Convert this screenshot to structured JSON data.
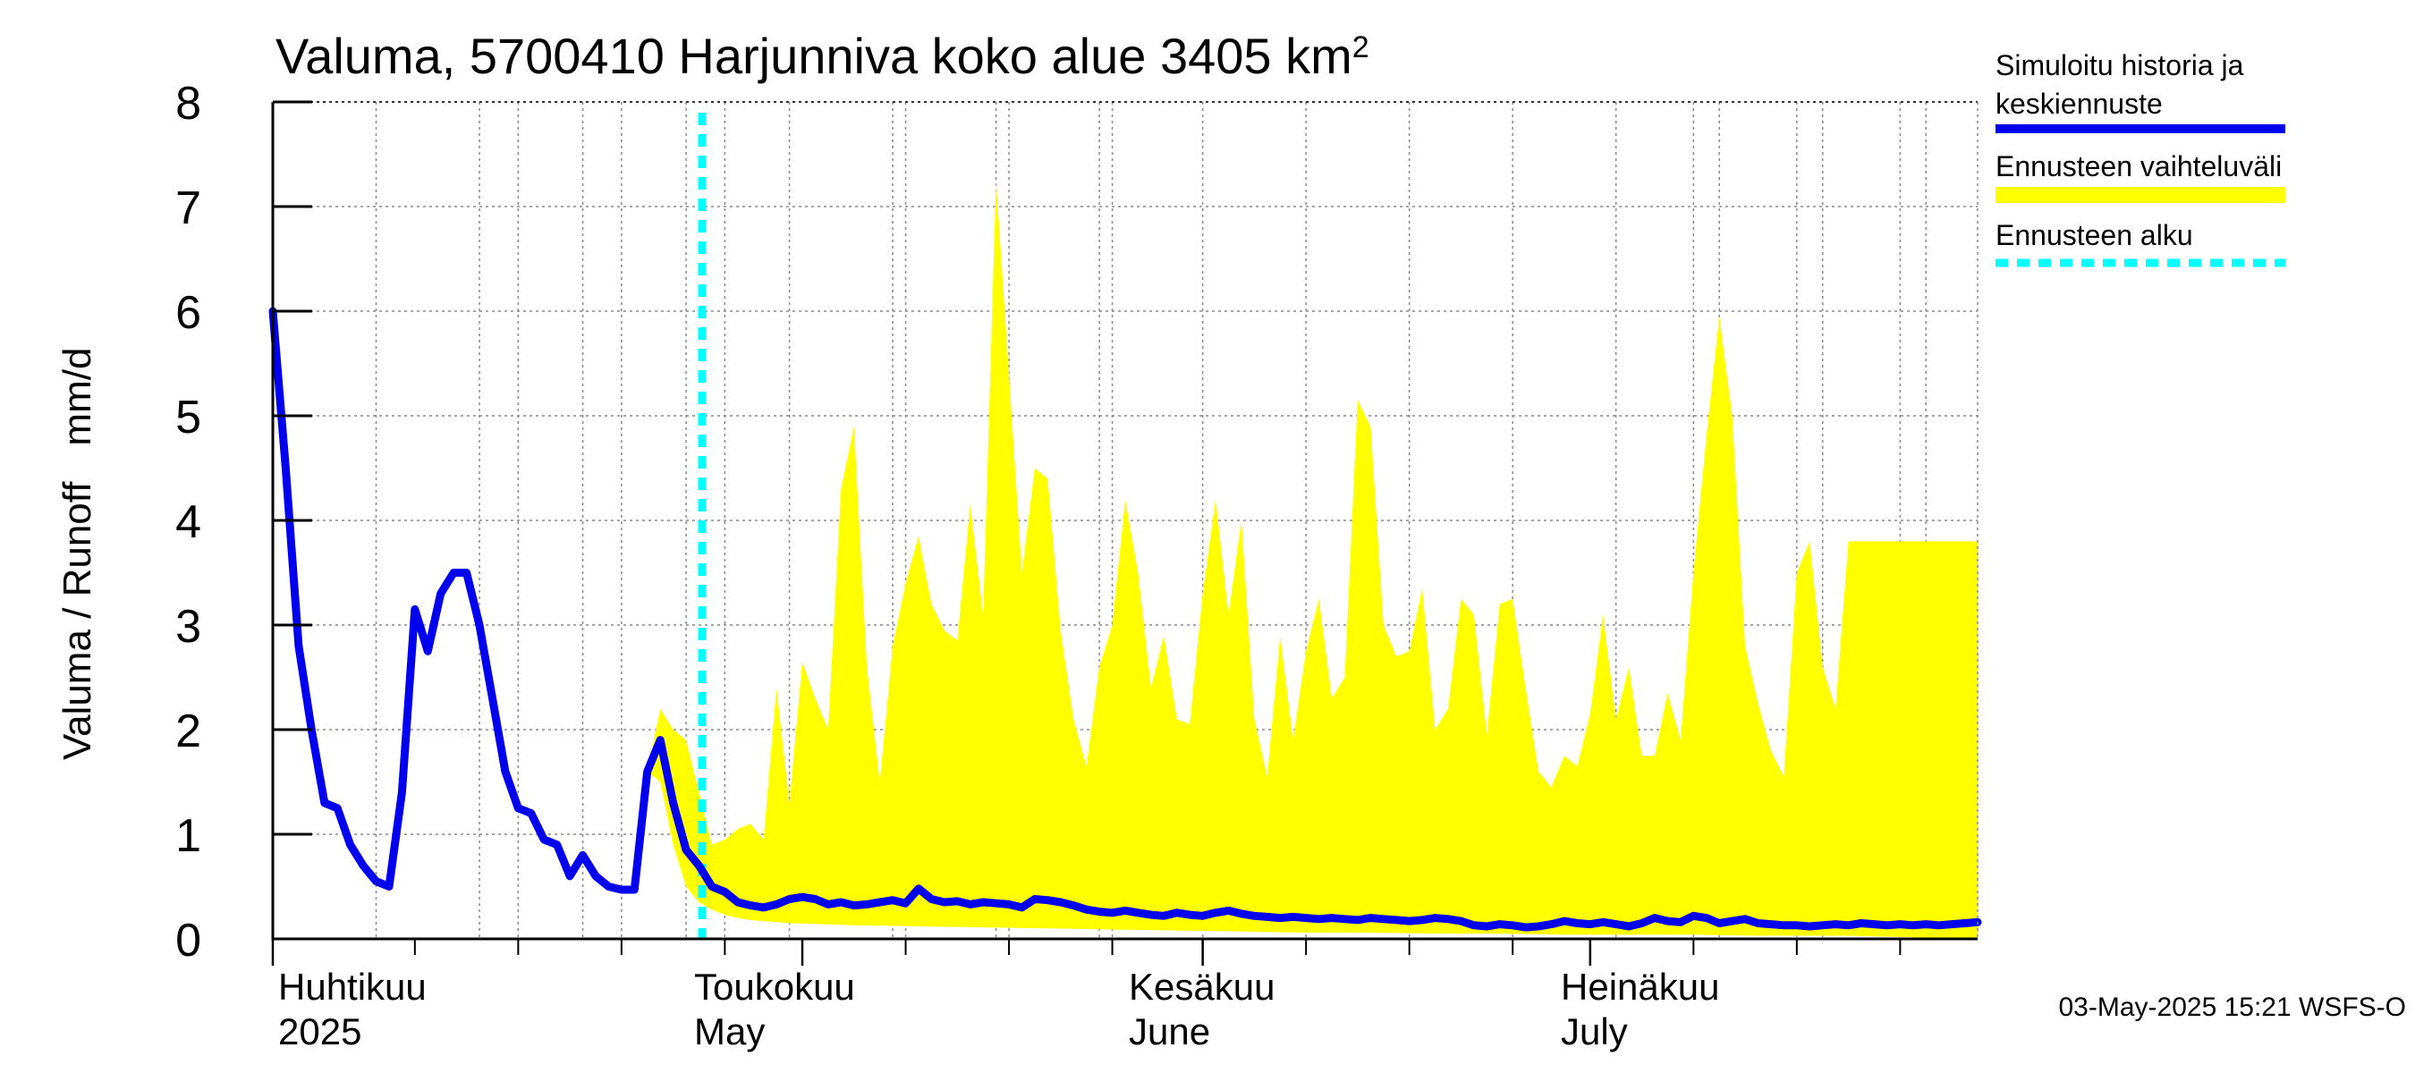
{
  "chart_data": {
    "type": "area",
    "title": "Valuma, 5700410 Harjunniva koko alue 3405 km",
    "title_superscript": "2",
    "ylabel_fi": "Valuma / Runoff",
    "ylabel_unit": "mm/d",
    "ylim": [
      0,
      8
    ],
    "y_ticks": [
      "0",
      "1",
      "2",
      "3",
      "4",
      "5",
      "6",
      "7",
      "8"
    ],
    "x_start": "2025-03-21",
    "x_end": "2025-07-31",
    "forecast_start_day": 40,
    "x_labels": [
      {
        "day": 0,
        "fi": "Huhtikuu",
        "en": "2025"
      },
      {
        "day": 1,
        "fi": "",
        "en": ""
      },
      {
        "day": 41,
        "fi": "Toukokuu",
        "en": "May"
      },
      {
        "day": 72,
        "fi": "Kesäkuu",
        "en": "June"
      },
      {
        "day": 102,
        "fi": "Heinäkuu",
        "en": "July"
      }
    ],
    "month_labels": [
      {
        "fi": "Huhtikuu",
        "en": "2025"
      },
      {
        "fi": "Toukokuu",
        "en": "May"
      },
      {
        "fi": "Kesäkuu",
        "en": "June"
      },
      {
        "fi": "Heinäkuu",
        "en": "July"
      }
    ],
    "series": [
      {
        "name": "Simuloitu historia ja keskiennuste",
        "color": "#0000ee",
        "points": [
          [
            0,
            6.0
          ],
          [
            1,
            4.5
          ],
          [
            2,
            2.8
          ],
          [
            3,
            2.0
          ],
          [
            4,
            1.3
          ],
          [
            5,
            1.25
          ],
          [
            6,
            0.9
          ],
          [
            7,
            0.7
          ],
          [
            8,
            0.55
          ],
          [
            9,
            0.5
          ],
          [
            10,
            1.4
          ],
          [
            11,
            3.15
          ],
          [
            12,
            2.75
          ],
          [
            13,
            3.3
          ],
          [
            14,
            3.5
          ],
          [
            15,
            3.5
          ],
          [
            16,
            3.0
          ],
          [
            17,
            2.3
          ],
          [
            18,
            1.6
          ],
          [
            19,
            1.25
          ],
          [
            20,
            1.2
          ],
          [
            21,
            0.95
          ],
          [
            22,
            0.9
          ],
          [
            23,
            0.6
          ],
          [
            24,
            0.8
          ],
          [
            25,
            0.6
          ],
          [
            26,
            0.5
          ],
          [
            27,
            0.47
          ],
          [
            28,
            0.47
          ],
          [
            29,
            1.6
          ],
          [
            30,
            1.9
          ],
          [
            31,
            1.3
          ],
          [
            32,
            0.85
          ],
          [
            33,
            0.7
          ],
          [
            34,
            0.5
          ],
          [
            35,
            0.45
          ],
          [
            36,
            0.35
          ],
          [
            37,
            0.32
          ],
          [
            38,
            0.3
          ],
          [
            39,
            0.33
          ],
          [
            40,
            0.38
          ],
          [
            41,
            0.4
          ],
          [
            42,
            0.38
          ],
          [
            43,
            0.33
          ],
          [
            44,
            0.35
          ],
          [
            45,
            0.32
          ],
          [
            46,
            0.33
          ],
          [
            47,
            0.35
          ],
          [
            48,
            0.37
          ],
          [
            49,
            0.34
          ],
          [
            50,
            0.48
          ],
          [
            51,
            0.38
          ],
          [
            52,
            0.35
          ],
          [
            53,
            0.36
          ],
          [
            54,
            0.33
          ],
          [
            55,
            0.35
          ],
          [
            56,
            0.34
          ],
          [
            57,
            0.33
          ],
          [
            58,
            0.3
          ],
          [
            59,
            0.38
          ],
          [
            60,
            0.37
          ],
          [
            61,
            0.35
          ],
          [
            62,
            0.32
          ],
          [
            63,
            0.28
          ],
          [
            64,
            0.26
          ],
          [
            65,
            0.25
          ],
          [
            66,
            0.27
          ],
          [
            67,
            0.25
          ],
          [
            68,
            0.23
          ],
          [
            69,
            0.22
          ],
          [
            70,
            0.25
          ],
          [
            71,
            0.23
          ],
          [
            72,
            0.22
          ],
          [
            73,
            0.25
          ],
          [
            74,
            0.27
          ],
          [
            75,
            0.24
          ],
          [
            76,
            0.22
          ],
          [
            77,
            0.21
          ],
          [
            78,
            0.2
          ],
          [
            79,
            0.21
          ],
          [
            80,
            0.2
          ],
          [
            81,
            0.19
          ],
          [
            82,
            0.2
          ],
          [
            83,
            0.19
          ],
          [
            84,
            0.18
          ],
          [
            85,
            0.2
          ],
          [
            86,
            0.19
          ],
          [
            87,
            0.18
          ],
          [
            88,
            0.17
          ],
          [
            89,
            0.18
          ],
          [
            90,
            0.2
          ],
          [
            91,
            0.19
          ],
          [
            92,
            0.17
          ],
          [
            93,
            0.13
          ],
          [
            94,
            0.12
          ],
          [
            95,
            0.14
          ],
          [
            96,
            0.13
          ],
          [
            97,
            0.11
          ],
          [
            98,
            0.12
          ],
          [
            99,
            0.14
          ],
          [
            100,
            0.17
          ],
          [
            101,
            0.15
          ],
          [
            102,
            0.14
          ],
          [
            103,
            0.16
          ],
          [
            104,
            0.14
          ],
          [
            105,
            0.12
          ],
          [
            106,
            0.15
          ],
          [
            107,
            0.2
          ],
          [
            108,
            0.17
          ],
          [
            109,
            0.16
          ],
          [
            110,
            0.22
          ],
          [
            111,
            0.2
          ],
          [
            112,
            0.15
          ],
          [
            113,
            0.17
          ],
          [
            114,
            0.19
          ],
          [
            115,
            0.15
          ],
          [
            116,
            0.14
          ],
          [
            117,
            0.13
          ],
          [
            118,
            0.13
          ],
          [
            119,
            0.12
          ],
          [
            120,
            0.13
          ],
          [
            121,
            0.14
          ],
          [
            122,
            0.13
          ],
          [
            123,
            0.15
          ],
          [
            124,
            0.14
          ],
          [
            125,
            0.13
          ],
          [
            126,
            0.14
          ],
          [
            127,
            0.13
          ],
          [
            128,
            0.14
          ],
          [
            129,
            0.13
          ],
          [
            130,
            0.14
          ],
          [
            131,
            0.15
          ],
          [
            132,
            0.16
          ]
        ]
      },
      {
        "name": "Ennusteen vaihteluväli",
        "color": "#ffff00",
        "upper": [
          [
            29,
            1.6
          ],
          [
            30,
            2.2
          ],
          [
            31,
            2.0
          ],
          [
            32,
            1.9
          ],
          [
            33,
            1.4
          ],
          [
            34,
            0.9
          ],
          [
            35,
            0.95
          ],
          [
            36,
            1.05
          ],
          [
            37,
            1.1
          ],
          [
            38,
            0.95
          ],
          [
            39,
            2.4
          ],
          [
            40,
            1.3
          ],
          [
            41,
            2.65
          ],
          [
            42,
            2.3
          ],
          [
            43,
            2.0
          ],
          [
            44,
            4.3
          ],
          [
            45,
            4.9
          ],
          [
            46,
            2.6
          ],
          [
            47,
            1.5
          ],
          [
            48,
            2.8
          ],
          [
            49,
            3.4
          ],
          [
            50,
            3.85
          ],
          [
            51,
            3.2
          ],
          [
            52,
            2.95
          ],
          [
            53,
            2.85
          ],
          [
            54,
            4.15
          ],
          [
            55,
            3.1
          ],
          [
            56,
            7.25
          ],
          [
            57,
            5.4
          ],
          [
            58,
            3.5
          ],
          [
            59,
            4.5
          ],
          [
            60,
            4.4
          ],
          [
            61,
            2.95
          ],
          [
            62,
            2.1
          ],
          [
            63,
            1.65
          ],
          [
            64,
            2.6
          ],
          [
            65,
            3.0
          ],
          [
            66,
            4.2
          ],
          [
            67,
            3.5
          ],
          [
            68,
            2.4
          ],
          [
            69,
            2.9
          ],
          [
            70,
            2.1
          ],
          [
            71,
            2.05
          ],
          [
            72,
            3.3
          ],
          [
            73,
            4.2
          ],
          [
            74,
            3.1
          ],
          [
            75,
            4.0
          ],
          [
            76,
            2.1
          ],
          [
            77,
            1.55
          ],
          [
            78,
            2.9
          ],
          [
            79,
            1.9
          ],
          [
            80,
            2.75
          ],
          [
            81,
            3.25
          ],
          [
            82,
            2.3
          ],
          [
            83,
            2.5
          ],
          [
            84,
            5.15
          ],
          [
            85,
            4.9
          ],
          [
            86,
            3.0
          ],
          [
            87,
            2.7
          ],
          [
            88,
            2.75
          ],
          [
            89,
            3.35
          ],
          [
            90,
            2.0
          ],
          [
            91,
            2.2
          ],
          [
            92,
            3.25
          ],
          [
            93,
            3.1
          ],
          [
            94,
            1.95
          ],
          [
            95,
            3.2
          ],
          [
            96,
            3.25
          ],
          [
            97,
            2.4
          ],
          [
            98,
            1.6
          ],
          [
            99,
            1.45
          ],
          [
            100,
            1.75
          ],
          [
            101,
            1.65
          ],
          [
            102,
            2.15
          ],
          [
            103,
            3.1
          ],
          [
            104,
            2.1
          ],
          [
            105,
            2.6
          ],
          [
            106,
            1.75
          ],
          [
            107,
            1.75
          ],
          [
            108,
            2.35
          ],
          [
            109,
            1.9
          ],
          [
            110,
            3.5
          ],
          [
            111,
            4.8
          ],
          [
            112,
            5.95
          ],
          [
            113,
            5.0
          ],
          [
            114,
            2.8
          ],
          [
            115,
            2.25
          ],
          [
            116,
            1.8
          ],
          [
            117,
            1.55
          ],
          [
            118,
            3.5
          ],
          [
            119,
            3.8
          ],
          [
            120,
            2.6
          ],
          [
            121,
            2.2
          ],
          [
            122,
            3.8
          ]
        ],
        "lower": [
          [
            29,
            1.6
          ],
          [
            30,
            1.5
          ],
          [
            31,
            0.9
          ],
          [
            32,
            0.5
          ],
          [
            33,
            0.35
          ],
          [
            34,
            0.28
          ],
          [
            35,
            0.23
          ],
          [
            36,
            0.2
          ],
          [
            37,
            0.18
          ],
          [
            38,
            0.17
          ],
          [
            39,
            0.16
          ],
          [
            40,
            0.15
          ],
          [
            45,
            0.13
          ],
          [
            50,
            0.12
          ],
          [
            55,
            0.11
          ],
          [
            60,
            0.1
          ],
          [
            65,
            0.09
          ],
          [
            70,
            0.08
          ],
          [
            75,
            0.07
          ],
          [
            80,
            0.06
          ],
          [
            85,
            0.06
          ],
          [
            90,
            0.05
          ],
          [
            95,
            0.05
          ],
          [
            100,
            0.04
          ],
          [
            105,
            0.04
          ],
          [
            110,
            0.04
          ],
          [
            115,
            0.03
          ],
          [
            122,
            0.03
          ]
        ]
      },
      {
        "name": "Ennusteen alku",
        "color": "#00ffff"
      }
    ],
    "legend": [
      {
        "label": "Simuloitu historia ja",
        "label2": "keskiennuste",
        "color": "#0000ee",
        "style": "solid"
      },
      {
        "label": "Ennusteen vaihteluväli",
        "color": "#ffff00",
        "style": "solid"
      },
      {
        "label": "Ennusteen alku",
        "color": "#00ffff",
        "style": "dashed"
      }
    ]
  },
  "footer": "03-May-2025 15:21 WSFS-O"
}
